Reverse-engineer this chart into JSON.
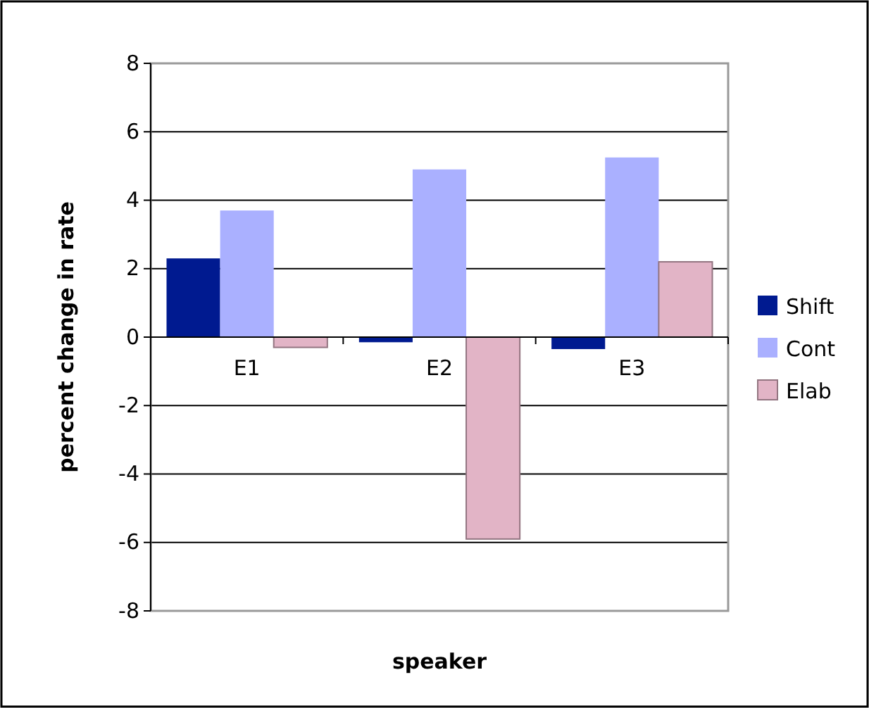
{
  "chart_data": {
    "type": "bar",
    "xlabel": "speaker",
    "ylabel": "percent change in rate",
    "categories": [
      "E1",
      "E2",
      "E3"
    ],
    "series": [
      {
        "name": "Shift",
        "color": "#001a90",
        "values": [
          2.3,
          -0.15,
          -0.35
        ]
      },
      {
        "name": "Cont",
        "color": "#aab0ff",
        "values": [
          3.7,
          4.9,
          5.25
        ]
      },
      {
        "name": "Elab",
        "color": "#e2b4c6",
        "values": [
          -0.3,
          -5.9,
          2.2
        ]
      }
    ],
    "ylim": [
      -8,
      8
    ],
    "yticks": [
      -8,
      -6,
      -4,
      -2,
      0,
      2,
      4,
      6,
      8
    ],
    "grid": "y",
    "legend": "right"
  }
}
